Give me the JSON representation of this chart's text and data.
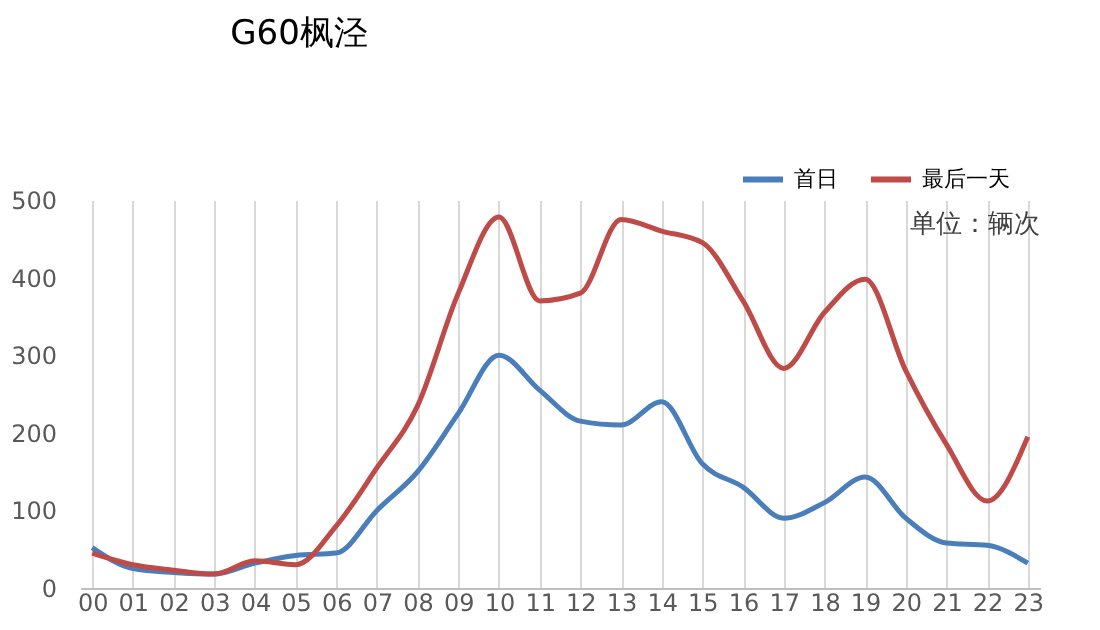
{
  "chart_data": {
    "type": "line",
    "title": "G60枫泾",
    "categories": [
      "00",
      "01",
      "02",
      "03",
      "04",
      "05",
      "06",
      "07",
      "08",
      "09",
      "10",
      "11",
      "12",
      "13",
      "14",
      "15",
      "16",
      "17",
      "18",
      "19",
      "20",
      "21",
      "22",
      "23"
    ],
    "series": [
      {
        "name": "首日",
        "color": "#4a7ebb",
        "values": [
          52,
          25,
          20,
          18,
          32,
          42,
          45,
          100,
          150,
          225,
          300,
          255,
          215,
          210,
          240,
          160,
          130,
          90,
          110,
          143,
          90,
          58,
          55,
          32
        ]
      },
      {
        "name": "最后一天",
        "color": "#be4b48",
        "values": [
          45,
          30,
          23,
          18,
          35,
          30,
          80,
          155,
          235,
          380,
          478,
          370,
          380,
          475,
          460,
          445,
          370,
          283,
          355,
          398,
          280,
          185,
          112,
          195
        ]
      }
    ],
    "ylim": [
      0,
      500
    ],
    "yticks": [
      0,
      100,
      200,
      300,
      400,
      500
    ],
    "grid": "x",
    "legend": "top right",
    "marker": "none",
    "line_style": "solid",
    "annotations": [
      "单位：辆次"
    ]
  }
}
